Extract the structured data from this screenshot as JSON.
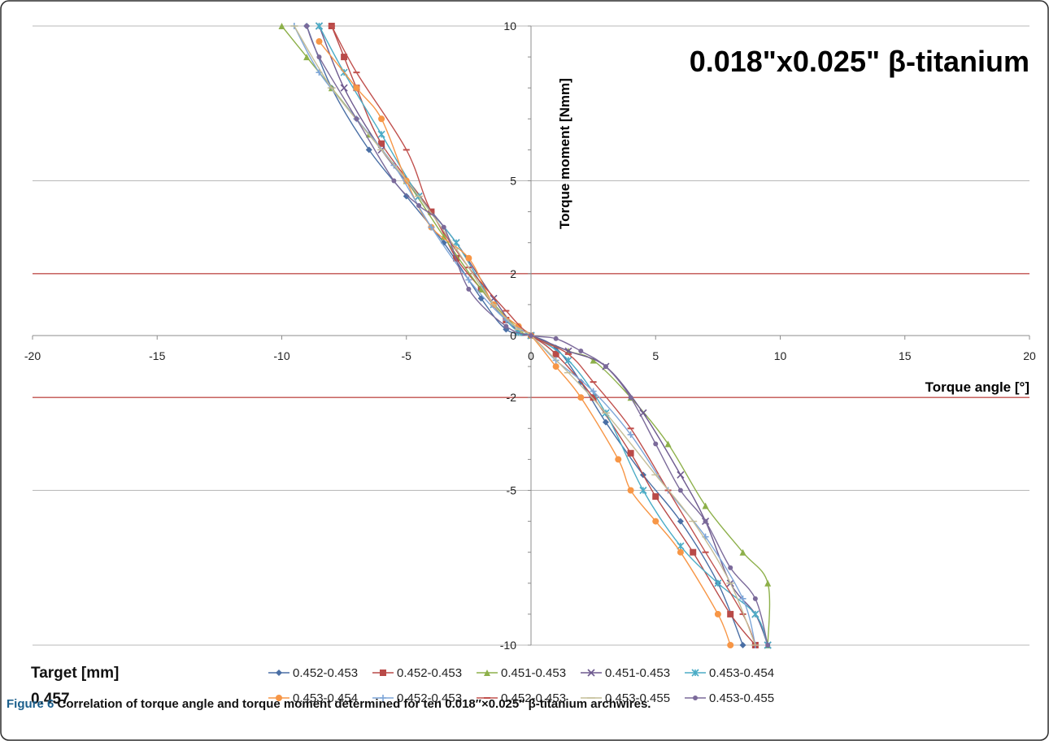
{
  "caption": {
    "figure_label": "Figure 6",
    "text": "Correlation of torque angle and torque moment determined for ten 0.018″×0.025″ β-titanium archwires."
  },
  "side_note": {
    "label": "Target [mm]",
    "value": "0.457"
  },
  "chart_data": {
    "type": "line",
    "title": "0.018\"x0.025\" β-titanium",
    "xlabel": "Torque angle [°]",
    "ylabel": "Torque moment [Nmm]",
    "xlim": [
      -20,
      20
    ],
    "ylim": [
      -10,
      10
    ],
    "x_ticks": [
      -20,
      -15,
      -10,
      -5,
      0,
      5,
      10,
      15,
      20
    ],
    "y_ticks": [
      10,
      5,
      2,
      0,
      -2,
      -5,
      -10
    ],
    "reference_lines_y": [
      2,
      -2
    ],
    "reference_line_color": "#c0504d",
    "grid": true,
    "legend_position": "bottom",
    "series": [
      {
        "name": "0.452-0.453",
        "color": "#4a6fa5",
        "marker": "diamond",
        "points": [
          [
            -9,
            10
          ],
          [
            -8,
            8
          ],
          [
            -6.5,
            6
          ],
          [
            -5,
            4.5
          ],
          [
            -3.5,
            3
          ],
          [
            -2,
            1.2
          ],
          [
            -1,
            0.2
          ],
          [
            0,
            0
          ],
          [
            1,
            -0.4
          ],
          [
            2,
            -1.5
          ],
          [
            3,
            -2.8
          ],
          [
            4.5,
            -4.5
          ],
          [
            6,
            -6
          ],
          [
            7.5,
            -8
          ],
          [
            8.5,
            -10
          ]
        ]
      },
      {
        "name": "0.452-0.453",
        "color": "#b94a48",
        "marker": "square",
        "points": [
          [
            -8,
            10
          ],
          [
            -7.5,
            9
          ],
          [
            -7,
            8
          ],
          [
            -6,
            6.2
          ],
          [
            -4,
            4
          ],
          [
            -3,
            2.5
          ],
          [
            -2,
            1.5
          ],
          [
            -1,
            0.5
          ],
          [
            0,
            0
          ],
          [
            1,
            -0.6
          ],
          [
            2.5,
            -2
          ],
          [
            4,
            -3.8
          ],
          [
            5,
            -5.2
          ],
          [
            6.5,
            -7
          ],
          [
            8,
            -9
          ],
          [
            9,
            -10
          ]
        ]
      },
      {
        "name": "0.451-0.453",
        "color": "#8db04a",
        "marker": "triangle",
        "points": [
          [
            -10,
            10
          ],
          [
            -9,
            9
          ],
          [
            -8,
            8
          ],
          [
            -6.5,
            6.5
          ],
          [
            -5,
            5
          ],
          [
            -3.5,
            3.2
          ],
          [
            -2,
            1.5
          ],
          [
            -0.5,
            0.2
          ],
          [
            0,
            0
          ],
          [
            1.5,
            -0.5
          ],
          [
            2.5,
            -0.8
          ],
          [
            4,
            -2
          ],
          [
            5.5,
            -3.5
          ],
          [
            7,
            -5.5
          ],
          [
            8.5,
            -7
          ],
          [
            9.5,
            -8
          ],
          [
            9.5,
            -10
          ]
        ]
      },
      {
        "name": "0.451-0.453",
        "color": "#6e5a8f",
        "marker": "x",
        "points": [
          [
            -8.5,
            10
          ],
          [
            -7.5,
            8
          ],
          [
            -6,
            6
          ],
          [
            -4.5,
            4.5
          ],
          [
            -3,
            3
          ],
          [
            -1.5,
            1.2
          ],
          [
            -0.5,
            0.1
          ],
          [
            0,
            0
          ],
          [
            1.5,
            -0.5
          ],
          [
            3,
            -1
          ],
          [
            4.5,
            -2.5
          ],
          [
            6,
            -4.5
          ],
          [
            7,
            -6
          ],
          [
            8,
            -8
          ],
          [
            9,
            -9
          ],
          [
            9.5,
            -10
          ]
        ]
      },
      {
        "name": "0.453-0.454",
        "color": "#4bacc6",
        "marker": "star",
        "points": [
          [
            -8.5,
            10
          ],
          [
            -7.5,
            8.5
          ],
          [
            -6,
            6.5
          ],
          [
            -4.5,
            4.5
          ],
          [
            -3,
            3
          ],
          [
            -1.5,
            1
          ],
          [
            -0.5,
            0.1
          ],
          [
            0,
            0
          ],
          [
            1.5,
            -0.8
          ],
          [
            3,
            -2.5
          ],
          [
            4.5,
            -5
          ],
          [
            6,
            -6.8
          ],
          [
            7.5,
            -8
          ],
          [
            9,
            -9
          ],
          [
            9.5,
            -10
          ]
        ]
      },
      {
        "name": "0.453-0.454",
        "color": "#f79646",
        "marker": "circle",
        "points": [
          [
            -8.5,
            9.5
          ],
          [
            -7,
            8
          ],
          [
            -6,
            7
          ],
          [
            -5,
            5
          ],
          [
            -4,
            3.5
          ],
          [
            -2.5,
            2.5
          ],
          [
            -1.5,
            1
          ],
          [
            -0.5,
            0.3
          ],
          [
            0,
            0
          ],
          [
            1,
            -1
          ],
          [
            2,
            -2
          ],
          [
            3.5,
            -4
          ],
          [
            4,
            -5
          ],
          [
            5,
            -6
          ],
          [
            6,
            -7
          ],
          [
            7.5,
            -9
          ],
          [
            8,
            -10
          ]
        ]
      },
      {
        "name": "0.452-0.453",
        "color": "#7ea6d8",
        "marker": "plus",
        "points": [
          [
            -9.5,
            10
          ],
          [
            -8.5,
            8.5
          ],
          [
            -7,
            7
          ],
          [
            -5.5,
            5.5
          ],
          [
            -4,
            3.5
          ],
          [
            -2.5,
            1.8
          ],
          [
            -1,
            0.5
          ],
          [
            0,
            0
          ],
          [
            1,
            -0.8
          ],
          [
            2.5,
            -1.8
          ],
          [
            4,
            -3.2
          ],
          [
            5.5,
            -5
          ],
          [
            7,
            -6.5
          ],
          [
            8.5,
            -8.5
          ],
          [
            9,
            -10
          ]
        ]
      },
      {
        "name": "0.452-0.453",
        "color": "#c0504d",
        "marker": "dash",
        "points": [
          [
            -8,
            10
          ],
          [
            -7,
            8.5
          ],
          [
            -5,
            6
          ],
          [
            -4,
            4
          ],
          [
            -2.5,
            2.2
          ],
          [
            -1,
            0.8
          ],
          [
            0,
            0
          ],
          [
            1.5,
            -0.6
          ],
          [
            2.5,
            -1.5
          ],
          [
            4,
            -3
          ],
          [
            5.5,
            -5
          ],
          [
            7,
            -7
          ],
          [
            8.5,
            -9
          ],
          [
            9,
            -10
          ]
        ]
      },
      {
        "name": "0.453-0.455",
        "color": "#c4bd97",
        "marker": "line",
        "points": [
          [
            -9.5,
            10
          ],
          [
            -8,
            8
          ],
          [
            -6,
            6
          ],
          [
            -4.5,
            4.5
          ],
          [
            -3,
            2.8
          ],
          [
            -1.5,
            1
          ],
          [
            -0.5,
            0.2
          ],
          [
            0,
            0
          ],
          [
            1.5,
            -1.2
          ],
          [
            3,
            -2.5
          ],
          [
            5,
            -4.5
          ],
          [
            6.5,
            -6
          ],
          [
            8,
            -8
          ],
          [
            9,
            -10
          ]
        ]
      },
      {
        "name": "0.453-0.455",
        "color": "#7b6a9a",
        "marker": "dot",
        "points": [
          [
            -9,
            10
          ],
          [
            -8.5,
            9
          ],
          [
            -7,
            7
          ],
          [
            -5.5,
            5
          ],
          [
            -4.5,
            4.2
          ],
          [
            -3.5,
            3.5
          ],
          [
            -2.5,
            1.5
          ],
          [
            -1,
            0.3
          ],
          [
            0,
            0
          ],
          [
            1,
            -0.1
          ],
          [
            2,
            -0.5
          ],
          [
            3,
            -1
          ],
          [
            4,
            -2
          ],
          [
            5,
            -3.5
          ],
          [
            6,
            -5
          ],
          [
            7,
            -6
          ],
          [
            8,
            -7.5
          ],
          [
            9,
            -8.5
          ],
          [
            9.5,
            -10
          ]
        ]
      }
    ]
  }
}
